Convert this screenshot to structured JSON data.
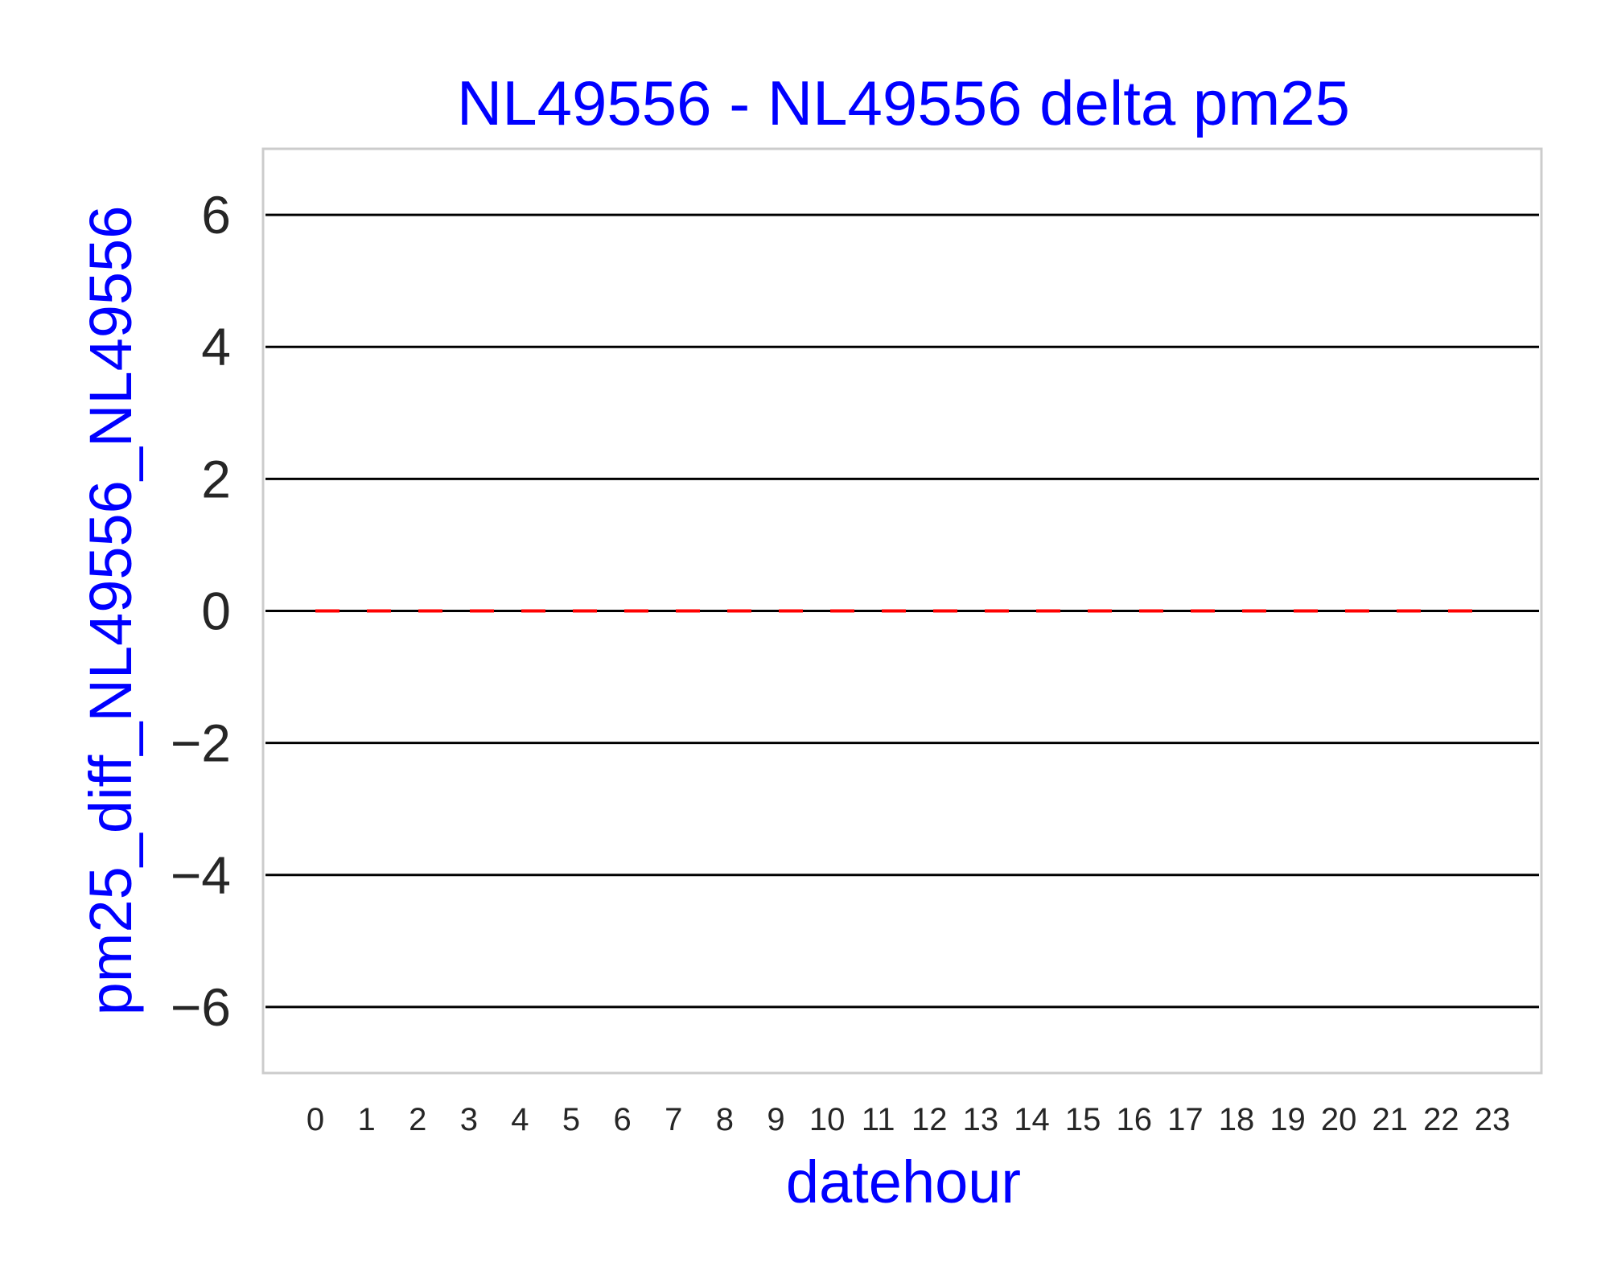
{
  "chart_data": {
    "type": "line",
    "title": "NL49556 - NL49556 delta pm25",
    "xlabel": "datehour",
    "ylabel": "pm25_diff_NL49556_NL49556",
    "categories": [
      "0",
      "1",
      "2",
      "3",
      "4",
      "5",
      "6",
      "7",
      "8",
      "9",
      "10",
      "11",
      "12",
      "13",
      "14",
      "15",
      "16",
      "17",
      "18",
      "19",
      "20",
      "21",
      "22",
      "23"
    ],
    "series": [
      {
        "values": [
          0,
          0,
          0,
          0,
          0,
          0,
          0,
          0,
          0,
          0,
          0,
          0,
          0,
          0,
          0,
          0,
          0,
          0,
          0,
          0,
          0,
          0,
          0,
          0
        ],
        "color": "#ff0000",
        "style": "dashed"
      }
    ],
    "ylim": [
      -7,
      7
    ],
    "yticks": [
      6,
      4,
      2,
      0,
      -2,
      -4,
      -6
    ],
    "ytick_labels": [
      "6",
      "4",
      "2",
      "0",
      "−2",
      "−4",
      "−6"
    ],
    "grid": true,
    "gridline_color": "#000000",
    "frame_color": "#cccccc",
    "text_color": "#0000ff"
  }
}
